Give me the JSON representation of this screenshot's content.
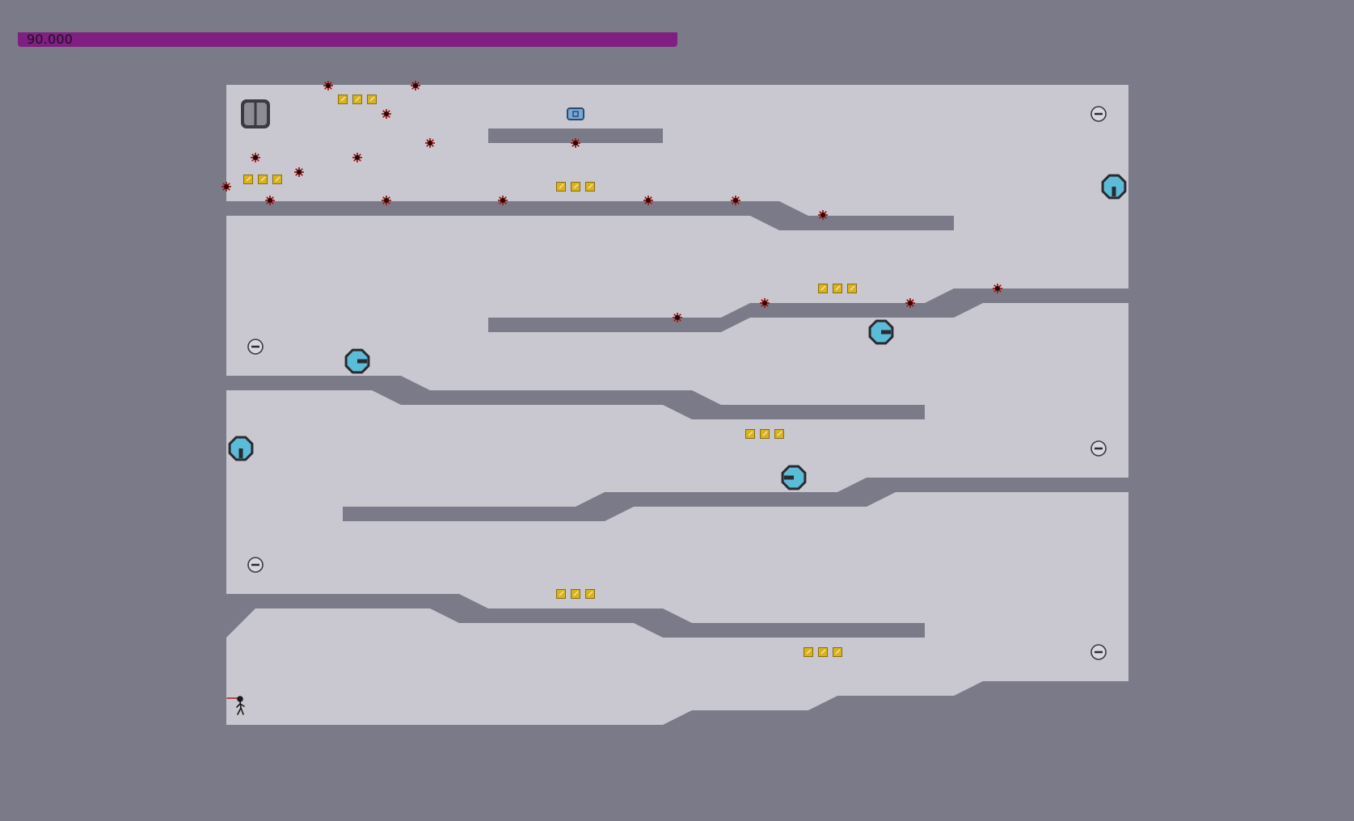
{
  "hud": {
    "time_remaining": "90.000",
    "time_fill_fraction": 1.0
  },
  "colors": {
    "background": "#7b7a89",
    "room_floor": "#c9c8d0",
    "wall": "#7b7a89",
    "time_bar": "#7f1f82",
    "gold": "#d8b320",
    "mine": "#a11a1a",
    "turret": "#5cbbd6",
    "turret_outline": "#2a2a30",
    "exit_door": "#8c8b96",
    "exit_switch": "#79a8d8"
  },
  "icons": {
    "exit": "exit-door-icon",
    "switch": "exit-switch-icon",
    "gold": "gold-square-icon",
    "mine": "mine-icon",
    "drone": "zap-drone-icon",
    "turret": "gauss-turret-icon",
    "player": "ninja-player-icon"
  }
}
